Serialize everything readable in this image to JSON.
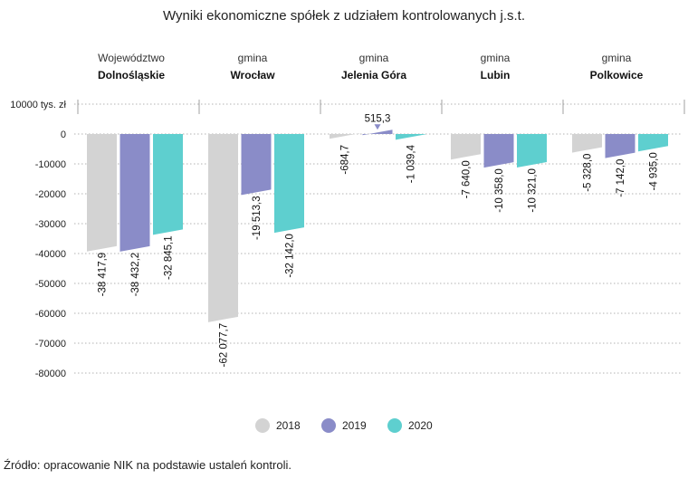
{
  "chart_data": {
    "type": "bar",
    "title": "Wyniki ekonomiczne spółek z udziałem kontrolowanych j.s.t.",
    "unit_label": "10000 tys. zł",
    "ylim": [
      -80000,
      10000
    ],
    "yticks": [
      {
        "value": 10000,
        "label": "10000 tys. zł"
      },
      {
        "value": 0,
        "label": "0"
      },
      {
        "value": -10000,
        "label": "-10000"
      },
      {
        "value": -20000,
        "label": "-20000"
      },
      {
        "value": -30000,
        "label": "-30000"
      },
      {
        "value": -40000,
        "label": "-40000"
      },
      {
        "value": -50000,
        "label": "-50000"
      },
      {
        "value": -60000,
        "label": "-60000"
      },
      {
        "value": -70000,
        "label": "-70000"
      },
      {
        "value": -80000,
        "label": "-80000"
      }
    ],
    "grid": true,
    "legend_position": "bottom",
    "categories": [
      {
        "sub": "Województwo",
        "name": "Dolnośląskie"
      },
      {
        "sub": "gmina",
        "name": "Wrocław"
      },
      {
        "sub": "gmina",
        "name": "Jelenia Góra"
      },
      {
        "sub": "gmina",
        "name": "Lubin"
      },
      {
        "sub": "gmina",
        "name": "Polkowice"
      }
    ],
    "series": [
      {
        "name": "2018",
        "color": "#d3d3d3",
        "values": [
          -38417.9,
          -62077.7,
          -684.7,
          -7640.0,
          -5328.0
        ],
        "labels": [
          "-38 417,9",
          "-62 077,7",
          "-684,7",
          "-7 640,0",
          "-5 328,0"
        ]
      },
      {
        "name": "2019",
        "color": "#8a8cc8",
        "values": [
          -38432.2,
          -19513.3,
          515.3,
          -10358.0,
          -7142.0
        ],
        "labels": [
          "-38 432,2",
          "-19 513,3",
          "515,3",
          "-10 358,0",
          "-7 142,0"
        ]
      },
      {
        "name": "2020",
        "color": "#5ecfcf",
        "values": [
          -32845.1,
          -32142.0,
          -1039.4,
          -10321.0,
          -4935.0
        ],
        "labels": [
          "-32 845,1",
          "-32 142,0",
          "-1 039,4",
          "-10 321,0",
          "-4 935,0"
        ]
      }
    ]
  },
  "footer": {
    "source": "Źródło: opracowanie NIK na podstawie ustaleń kontroli."
  }
}
